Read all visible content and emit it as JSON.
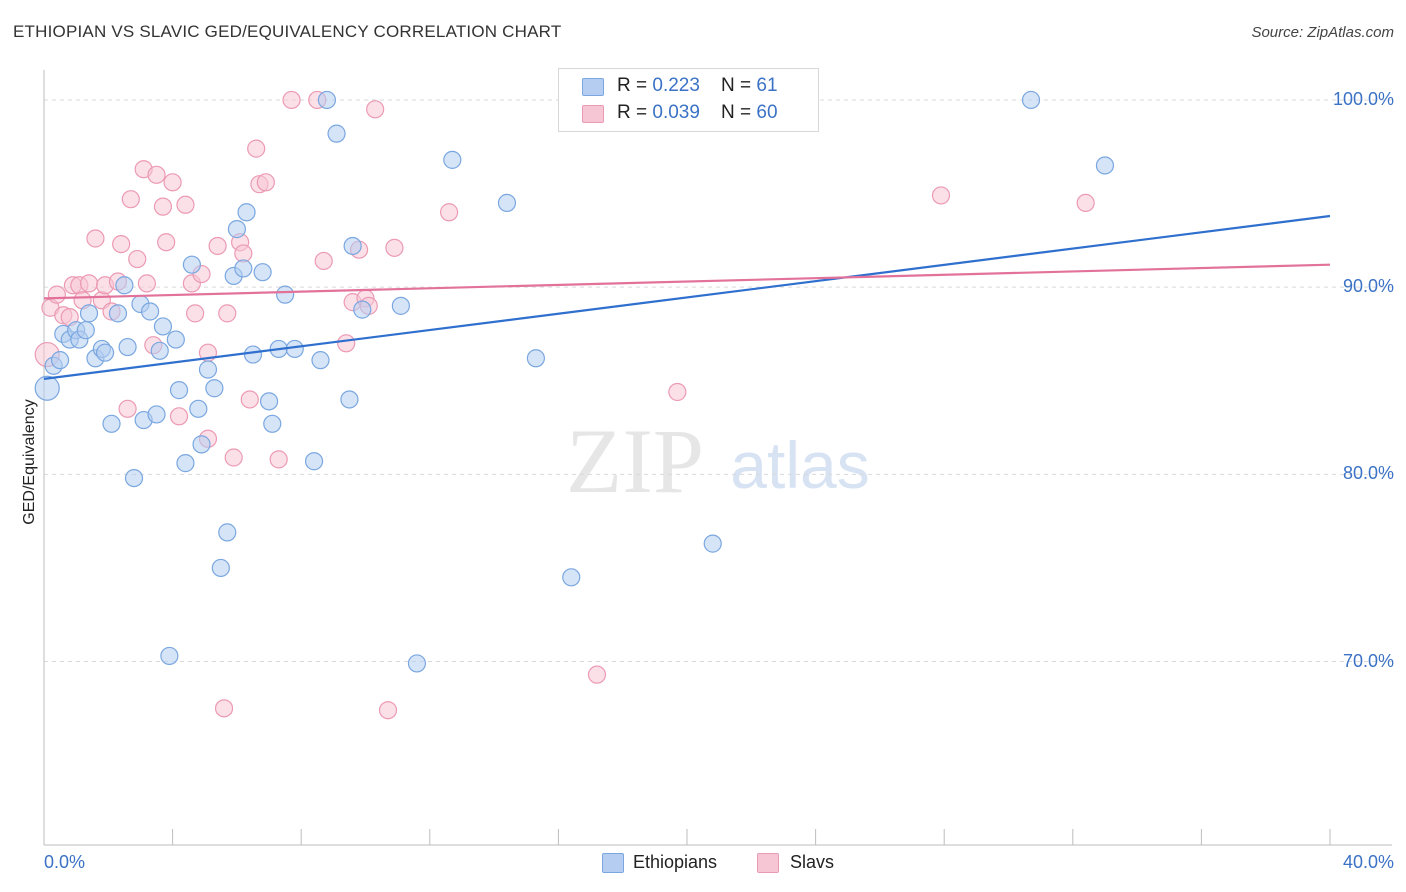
{
  "title": "ETHIOPIAN VS SLAVIC GED/EQUIVALENCY CORRELATION CHART",
  "source": "Source: ZipAtlas.com",
  "watermark": {
    "zip": "ZIP",
    "atlas": "atlas"
  },
  "colors": {
    "ethiopians": "#7aa7e0",
    "ethiopians_fill": "#b5cdf0",
    "ethiopians_line": "#2f6fce",
    "slavs": "#ec9ab4",
    "slavs_fill": "#f7c6d5",
    "slavs_line": "#e2729a",
    "accent_text": "#3b72c5",
    "grid": "#d9d9d9"
  },
  "legend_top": [
    {
      "series": "ethiopians",
      "r_label": "R = ",
      "r_value": "0.223",
      "n_label": "N = ",
      "n_value": "61"
    },
    {
      "series": "slavs",
      "r_label": "R = ",
      "r_value": "0.039",
      "n_label": "N = ",
      "n_value": "60"
    }
  ],
  "legend_bottom": [
    {
      "series": "ethiopians",
      "label": "Ethiopians"
    },
    {
      "series": "slavs",
      "label": "Slavs"
    }
  ],
  "chart_data": {
    "type": "scatter",
    "title": "ETHIOPIAN VS SLAVIC GED/EQUIVALENCY CORRELATION CHART",
    "xlabel": "",
    "ylabel": "GED/Equivalency",
    "xlim": [
      0,
      40
    ],
    "ylim": [
      60.2,
      101.6
    ],
    "x_tick_labels": {
      "left": "0.0%",
      "right": "40.0%"
    },
    "y_ticks": [
      {
        "value": 100,
        "label": "100.0%"
      },
      {
        "value": 90,
        "label": "90.0%"
      },
      {
        "value": 80,
        "label": "80.0%"
      },
      {
        "value": 70,
        "label": "70.0%"
      }
    ],
    "grid": true,
    "series": [
      {
        "name": "Ethiopians",
        "key": "ethiopians",
        "trend": {
          "x": [
            0,
            40
          ],
          "y": [
            85.1,
            93.8
          ]
        },
        "points": [
          [
            0.1,
            84.6
          ],
          [
            0.3,
            85.8
          ],
          [
            0.5,
            86.1
          ],
          [
            0.6,
            87.5
          ],
          [
            0.8,
            87.2
          ],
          [
            1.0,
            87.7
          ],
          [
            1.1,
            87.2
          ],
          [
            1.3,
            87.7
          ],
          [
            1.4,
            88.6
          ],
          [
            1.6,
            86.2
          ],
          [
            1.8,
            86.7
          ],
          [
            1.9,
            86.5
          ],
          [
            2.1,
            82.7
          ],
          [
            2.3,
            88.6
          ],
          [
            2.5,
            90.1
          ],
          [
            2.6,
            86.8
          ],
          [
            2.8,
            79.8
          ],
          [
            3.0,
            89.1
          ],
          [
            3.1,
            82.9
          ],
          [
            3.3,
            88.7
          ],
          [
            3.5,
            83.2
          ],
          [
            3.6,
            86.6
          ],
          [
            3.7,
            87.9
          ],
          [
            3.9,
            70.3
          ],
          [
            4.1,
            87.2
          ],
          [
            4.2,
            84.5
          ],
          [
            4.4,
            80.6
          ],
          [
            4.6,
            91.2
          ],
          [
            4.8,
            83.5
          ],
          [
            4.9,
            81.6
          ],
          [
            5.1,
            85.6
          ],
          [
            5.3,
            84.6
          ],
          [
            5.5,
            75.0
          ],
          [
            5.7,
            76.9
          ],
          [
            5.9,
            90.6
          ],
          [
            6.0,
            93.1
          ],
          [
            6.2,
            91.0
          ],
          [
            6.3,
            94.0
          ],
          [
            6.5,
            86.4
          ],
          [
            6.8,
            90.8
          ],
          [
            7.0,
            83.9
          ],
          [
            7.1,
            82.7
          ],
          [
            7.3,
            86.7
          ],
          [
            7.5,
            89.6
          ],
          [
            7.8,
            86.7
          ],
          [
            8.4,
            80.7
          ],
          [
            8.6,
            86.1
          ],
          [
            8.8,
            100.0
          ],
          [
            9.1,
            98.2
          ],
          [
            9.5,
            84.0
          ],
          [
            9.6,
            92.2
          ],
          [
            9.9,
            88.8
          ],
          [
            11.1,
            89.0
          ],
          [
            11.6,
            69.9
          ],
          [
            12.7,
            96.8
          ],
          [
            14.4,
            94.5
          ],
          [
            15.3,
            86.2
          ],
          [
            16.4,
            74.5
          ],
          [
            20.8,
            76.3
          ],
          [
            30.7,
            100.0
          ],
          [
            33.0,
            96.5
          ]
        ]
      },
      {
        "name": "Slavs",
        "key": "slavs",
        "trend": {
          "x": [
            0,
            40
          ],
          "y": [
            89.4,
            91.2
          ]
        },
        "points": [
          [
            0.1,
            86.4
          ],
          [
            0.2,
            88.9
          ],
          [
            0.4,
            89.6
          ],
          [
            0.6,
            88.5
          ],
          [
            0.8,
            88.4
          ],
          [
            0.9,
            90.1
          ],
          [
            1.1,
            90.1
          ],
          [
            1.2,
            89.3
          ],
          [
            1.4,
            90.2
          ],
          [
            1.6,
            92.6
          ],
          [
            1.8,
            89.3
          ],
          [
            1.9,
            90.1
          ],
          [
            2.1,
            88.7
          ],
          [
            2.3,
            90.3
          ],
          [
            2.4,
            92.3
          ],
          [
            2.6,
            83.5
          ],
          [
            2.7,
            94.7
          ],
          [
            2.9,
            91.5
          ],
          [
            3.1,
            96.3
          ],
          [
            3.2,
            90.2
          ],
          [
            3.4,
            86.9
          ],
          [
            3.5,
            96.0
          ],
          [
            3.7,
            94.3
          ],
          [
            3.8,
            92.4
          ],
          [
            4.0,
            95.6
          ],
          [
            4.2,
            83.1
          ],
          [
            4.4,
            94.4
          ],
          [
            4.6,
            90.2
          ],
          [
            4.7,
            88.6
          ],
          [
            4.9,
            90.7
          ],
          [
            5.1,
            81.9
          ],
          [
            5.1,
            86.5
          ],
          [
            5.4,
            92.2
          ],
          [
            5.6,
            67.5
          ],
          [
            5.7,
            88.6
          ],
          [
            5.9,
            80.9
          ],
          [
            6.1,
            92.4
          ],
          [
            6.2,
            91.8
          ],
          [
            6.4,
            84.0
          ],
          [
            6.6,
            97.4
          ],
          [
            6.7,
            95.5
          ],
          [
            6.9,
            95.6
          ],
          [
            7.3,
            80.8
          ],
          [
            7.7,
            100.0
          ],
          [
            8.5,
            100.0
          ],
          [
            8.7,
            91.4
          ],
          [
            9.4,
            87.0
          ],
          [
            9.6,
            89.2
          ],
          [
            9.8,
            92.0
          ],
          [
            10.0,
            89.4
          ],
          [
            10.1,
            89.0
          ],
          [
            10.3,
            99.5
          ],
          [
            10.7,
            67.4
          ],
          [
            10.9,
            92.1
          ],
          [
            12.6,
            94.0
          ],
          [
            17.2,
            69.3
          ],
          [
            19.3,
            100.0
          ],
          [
            19.7,
            84.4
          ],
          [
            27.9,
            94.9
          ],
          [
            32.4,
            94.5
          ]
        ]
      }
    ]
  }
}
